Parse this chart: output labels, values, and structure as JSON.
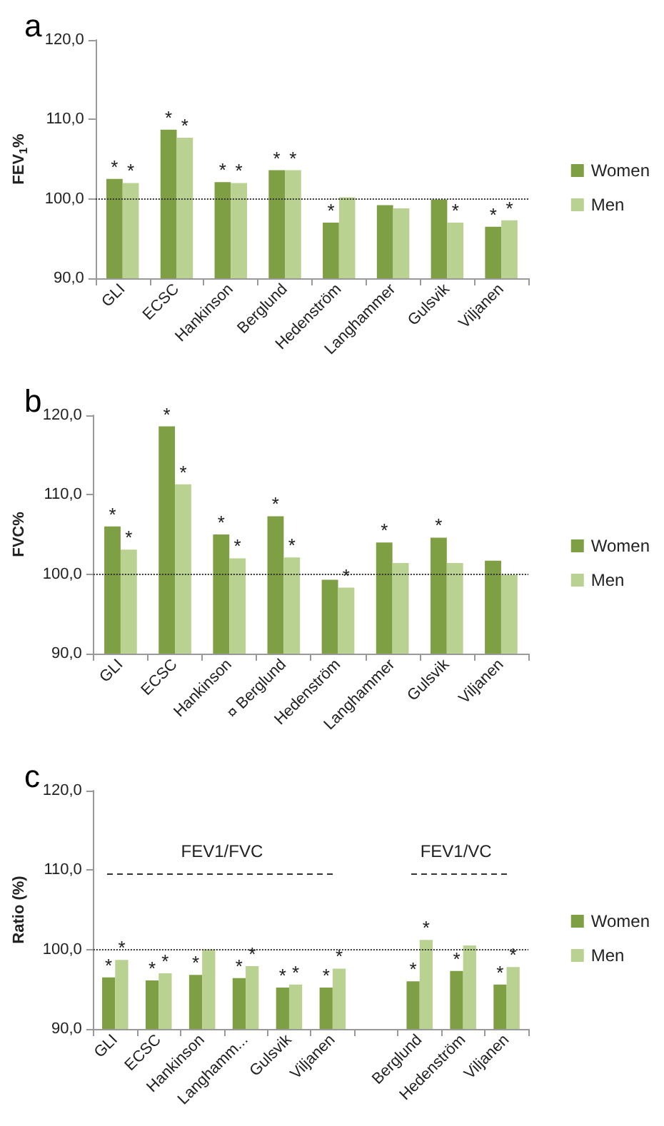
{
  "chart_data": [
    {
      "type": "bar",
      "title": "a",
      "ylabel": "FEV$_{1}$%",
      "categories": [
        "GLI",
        "ECSC",
        "Hankinson",
        "Berglund",
        "Hedenström",
        "Langhammer",
        "Gulsvik",
        "Viljanen"
      ],
      "series": [
        {
          "name": "Women",
          "color": "#7f9f45",
          "values": [
            102.5,
            108.7,
            102.1,
            103.6,
            97.0,
            99.2,
            99.9,
            96.5
          ],
          "value_labels": [
            "*",
            "*",
            "*",
            "*",
            "*",
            null,
            null,
            "*"
          ]
        },
        {
          "name": "Men",
          "color": "#b9d291",
          "values": [
            102.0,
            107.7,
            102.0,
            103.6,
            100.2,
            98.8,
            97.0,
            97.3
          ],
          "value_labels": [
            "*",
            "*",
            "*",
            "*",
            null,
            null,
            "*",
            "*"
          ]
        }
      ],
      "ylim": [
        90,
        120
      ],
      "yticks": [
        {
          "value": 90,
          "label": "90,0"
        },
        {
          "value": 100,
          "label": "100,0"
        },
        {
          "value": 110,
          "label": "110,0"
        },
        {
          "value": 120,
          "label": "120,0"
        }
      ],
      "ref_lines": [
        {
          "axis": "y",
          "value": 100,
          "line_style": "dotted",
          "color": "#333333"
        }
      ],
      "grid": false,
      "legend": "right"
    },
    {
      "type": "bar",
      "title": "b",
      "ylabel": "FVC%",
      "categories": [
        "GLI",
        "ECSC",
        "Hankinson",
        "¤ Berglund",
        "Hedenström",
        "Langhammer",
        "Gulsvik",
        "Viljanen"
      ],
      "series": [
        {
          "name": "Women",
          "color": "#7f9f45",
          "values": [
            106.0,
            118.6,
            105.0,
            107.3,
            99.3,
            104.0,
            104.6,
            101.7
          ],
          "value_labels": [
            "*",
            "*",
            "*",
            "*",
            null,
            "*",
            "*",
            null
          ]
        },
        {
          "name": "Men",
          "color": "#b9d291",
          "values": [
            103.1,
            111.3,
            102.0,
            102.1,
            98.3,
            101.4,
            101.4,
            99.9
          ],
          "value_labels": [
            "*",
            "*",
            "*",
            "*",
            "*",
            null,
            null,
            null
          ]
        }
      ],
      "ylim": [
        90,
        120
      ],
      "yticks": [
        {
          "value": 90,
          "label": "90,0"
        },
        {
          "value": 100,
          "label": "100,0"
        },
        {
          "value": 110,
          "label": "110,0"
        },
        {
          "value": 120,
          "label": "120,0"
        }
      ],
      "ref_lines": [
        {
          "axis": "y",
          "value": 100,
          "line_style": "dotted",
          "color": "#333333"
        }
      ],
      "grid": false,
      "legend": "right"
    },
    {
      "type": "bar",
      "title": "c",
      "ylabel": "Ratio (%)",
      "categories": [
        "GLI",
        "ECSC",
        "Hankinson",
        "Langhamm...",
        "Gulsvik",
        "Viljanen",
        null,
        "Berglund",
        "Hedenström",
        "Viljanen"
      ],
      "series": [
        {
          "name": "Women",
          "color": "#7f9f45",
          "values": [
            96.5,
            96.1,
            96.8,
            96.4,
            95.2,
            95.2,
            null,
            96.0,
            97.3,
            95.6
          ],
          "value_labels": [
            "*",
            "*",
            "*",
            "*",
            "*",
            "*",
            null,
            "*",
            "*",
            "*"
          ]
        },
        {
          "name": "Men",
          "color": "#b9d291",
          "values": [
            98.7,
            97.0,
            100.0,
            97.9,
            95.6,
            97.6,
            null,
            101.2,
            100.5,
            97.8
          ],
          "value_labels": [
            "*",
            "*",
            null,
            "*",
            "*",
            "*",
            null,
            "*",
            null,
            "*"
          ]
        }
      ],
      "ylim": [
        90,
        120
      ],
      "yticks": [
        {
          "value": 90,
          "label": "90,0"
        },
        {
          "value": 100,
          "label": "100,0"
        },
        {
          "value": 110,
          "label": "110,0"
        },
        {
          "value": 120,
          "label": "120,0"
        }
      ],
      "ref_lines": [
        {
          "axis": "y",
          "value": 100,
          "line_style": "dotted",
          "color": "#333333"
        }
      ],
      "annotations": [
        "FEV1/FVC",
        "FEV1/VC"
      ],
      "grid": false,
      "legend": "right"
    }
  ]
}
